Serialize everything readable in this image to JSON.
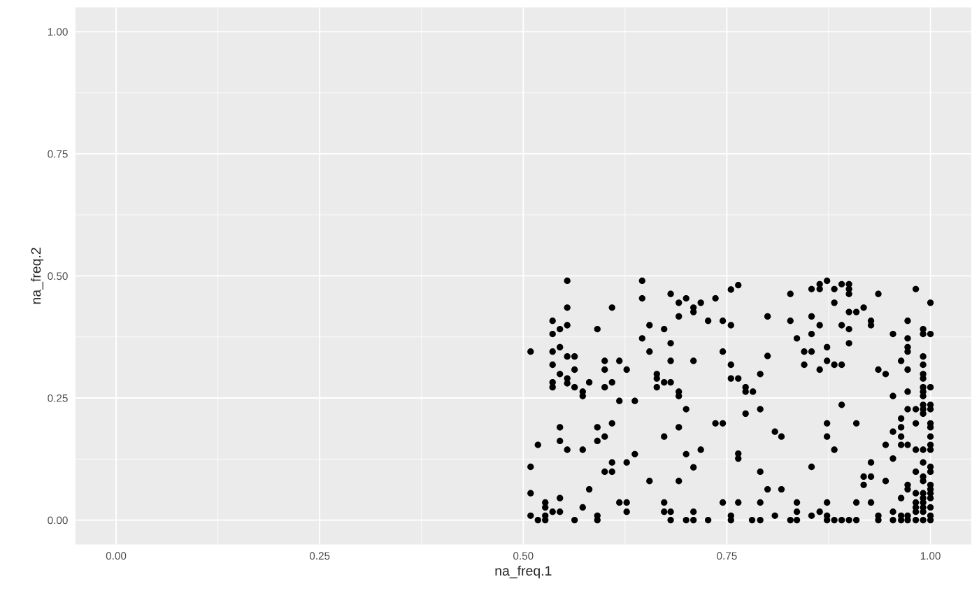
{
  "chart_data": {
    "type": "scatter",
    "xlabel": "na_freq.1",
    "ylabel": "na_freq.2",
    "xlim": [
      -0.05,
      1.05
    ],
    "ylim": [
      -0.05,
      1.05
    ],
    "xticks": [
      {
        "value": 0,
        "label": "0.00"
      },
      {
        "value": 0.25,
        "label": "0.25"
      },
      {
        "value": 0.5,
        "label": "0.50"
      },
      {
        "value": 0.75,
        "label": "0.75"
      },
      {
        "value": 1,
        "label": "1.00"
      }
    ],
    "yticks": [
      {
        "value": 0,
        "label": "0.00"
      },
      {
        "value": 0.25,
        "label": "0.25"
      },
      {
        "value": 0.5,
        "label": "0.50"
      },
      {
        "value": 0.75,
        "label": "0.75"
      },
      {
        "value": 1,
        "label": "1.00"
      }
    ],
    "grid": true,
    "marker": "circle",
    "series": [
      {
        "color": "#000000",
        "x": [
          0.554,
          0.646,
          0.646,
          0.554,
          0.609,
          0.536,
          0.554,
          0.545,
          0.536,
          0.591,
          0.655,
          0.673,
          0.646,
          0.509,
          0.536,
          0.545,
          0.554,
          0.563,
          0.655,
          0.536,
          0.563,
          0.545,
          0.6,
          0.618,
          0.6,
          0.627,
          0.554,
          0.554,
          0.536,
          0.536,
          0.563,
          0.573,
          0.573,
          0.581,
          0.6,
          0.609,
          0.664,
          0.664,
          0.664,
          0.673,
          0.618,
          0.637,
          0.609,
          0.545,
          0.591,
          0.6,
          0.545,
          0.591,
          0.518,
          0.554,
          0.573,
          0.673,
          0.637,
          0.609,
          0.627,
          0.6,
          0.609,
          0.509,
          0.655,
          0.581,
          0.509,
          0.545,
          0.527,
          0.527,
          0.536,
          0.545,
          0.573,
          0.618,
          0.627,
          0.627,
          0.673,
          0.673,
          0.509,
          0.518,
          0.527,
          0.527,
          0.563,
          0.591,
          0.591,
          0.764,
          0.755,
          0.681,
          0.828,
          0.7,
          0.736,
          0.691,
          0.709,
          0.718,
          0.709,
          0.691,
          0.8,
          0.727,
          0.745,
          0.828,
          0.755,
          0.836,
          0.681,
          0.745,
          0.845,
          0.8,
          0.681,
          0.709,
          0.755,
          0.845,
          0.791,
          0.755,
          0.764,
          0.681,
          0.691,
          0.691,
          0.773,
          0.773,
          0.782,
          0.7,
          0.791,
          0.773,
          0.736,
          0.745,
          0.691,
          0.809,
          0.817,
          0.718,
          0.7,
          0.764,
          0.764,
          0.709,
          0.791,
          0.691,
          0.8,
          0.817,
          0.745,
          0.764,
          0.791,
          0.836,
          0.681,
          0.709,
          0.836,
          0.809,
          0.755,
          0.681,
          0.7,
          0.709,
          0.727,
          0.755,
          0.781,
          0.791,
          0.828,
          0.836,
          0.873,
          0.864,
          0.854,
          0.864,
          0.882,
          0.891,
          0.9,
          0.9,
          0.9,
          0.936,
          0.982,
          0.882,
          1.0,
          0.9,
          0.909,
          0.918,
          0.854,
          0.927,
          0.927,
          0.972,
          0.864,
          0.891,
          0.9,
          0.854,
          0.954,
          0.991,
          0.991,
          1.0,
          0.972,
          0.9,
          0.873,
          0.972,
          0.972,
          0.854,
          0.991,
          0.964,
          0.873,
          0.882,
          0.891,
          0.991,
          0.864,
          0.936,
          0.972,
          0.945,
          0.991,
          0.991,
          0.991,
          1.0,
          0.972,
          0.991,
          0.991,
          0.954,
          0.891,
          0.972,
          0.982,
          0.991,
          1.0,
          0.991,
          1.0,
          0.991,
          0.964,
          0.873,
          0.909,
          0.982,
          1.0,
          0.964,
          1.0,
          0.954,
          0.873,
          0.964,
          1.0,
          0.945,
          0.964,
          0.972,
          1.0,
          0.882,
          0.982,
          0.991,
          1.0,
          0.954,
          0.927,
          0.991,
          0.854,
          1.0,
          1.0,
          0.982,
          0.918,
          0.927,
          0.991,
          0.945,
          0.991,
          0.918,
          0.972,
          1.0,
          0.972,
          1.0,
          0.982,
          0.991,
          1.0,
          0.964,
          0.991,
          1.0,
          0.873,
          0.909,
          0.927,
          0.982,
          0.991,
          0.982,
          0.991,
          1.0,
          0.864,
          0.954,
          0.982,
          0.991,
          0.854,
          0.873,
          0.936,
          0.964,
          0.972,
          1.0,
          0.873,
          0.882,
          0.891,
          0.9,
          0.909,
          0.936,
          0.954,
          0.964,
          0.972,
          0.982,
          0.991,
          1.0
        ],
        "values": [
          0.49,
          0.49,
          0.454,
          0.435,
          0.435,
          0.408,
          0.399,
          0.391,
          0.381,
          0.391,
          0.399,
          0.391,
          0.372,
          0.345,
          0.345,
          0.354,
          0.335,
          0.335,
          0.345,
          0.318,
          0.308,
          0.299,
          0.326,
          0.326,
          0.308,
          0.308,
          0.29,
          0.28,
          0.282,
          0.272,
          0.272,
          0.263,
          0.254,
          0.282,
          0.272,
          0.282,
          0.299,
          0.29,
          0.272,
          0.282,
          0.244,
          0.244,
          0.198,
          0.19,
          0.19,
          0.171,
          0.162,
          0.162,
          0.154,
          0.144,
          0.144,
          0.171,
          0.135,
          0.118,
          0.118,
          0.099,
          0.099,
          0.109,
          0.08,
          0.063,
          0.055,
          0.045,
          0.036,
          0.026,
          0.017,
          0.017,
          0.026,
          0.036,
          0.036,
          0.017,
          0.036,
          0.017,
          0.009,
          0,
          0.009,
          0,
          0,
          0.009,
          0,
          0.481,
          0.472,
          0.463,
          0.463,
          0.454,
          0.454,
          0.445,
          0.435,
          0.445,
          0.426,
          0.417,
          0.417,
          0.408,
          0.408,
          0.408,
          0.399,
          0.372,
          0.362,
          0.345,
          0.345,
          0.336,
          0.326,
          0.326,
          0.318,
          0.318,
          0.299,
          0.29,
          0.29,
          0.282,
          0.263,
          0.254,
          0.272,
          0.263,
          0.263,
          0.227,
          0.227,
          0.218,
          0.198,
          0.198,
          0.19,
          0.181,
          0.171,
          0.144,
          0.135,
          0.136,
          0.126,
          0.108,
          0.099,
          0.08,
          0.063,
          0.063,
          0.036,
          0.036,
          0.036,
          0.036,
          0.017,
          0.017,
          0.017,
          0.009,
          0.009,
          0,
          0,
          0,
          0,
          0,
          0,
          0,
          0,
          0,
          0.49,
          0.483,
          0.473,
          0.473,
          0.473,
          0.483,
          0.483,
          0.473,
          0.463,
          0.463,
          0.473,
          0.445,
          0.445,
          0.426,
          0.426,
          0.435,
          0.417,
          0.408,
          0.399,
          0.408,
          0.399,
          0.399,
          0.391,
          0.381,
          0.381,
          0.391,
          0.381,
          0.381,
          0.372,
          0.362,
          0.354,
          0.354,
          0.345,
          0.345,
          0.335,
          0.326,
          0.326,
          0.318,
          0.318,
          0.318,
          0.308,
          0.308,
          0.308,
          0.299,
          0.299,
          0.29,
          0.272,
          0.272,
          0.263,
          0.263,
          0.254,
          0.254,
          0.236,
          0.227,
          0.227,
          0.236,
          0.236,
          0.227,
          0.227,
          0.218,
          0.208,
          0.198,
          0.198,
          0.198,
          0.198,
          0.19,
          0.19,
          0.181,
          0.171,
          0.171,
          0.171,
          0.154,
          0.154,
          0.154,
          0.154,
          0.144,
          0.144,
          0.144,
          0.144,
          0.126,
          0.118,
          0.118,
          0.109,
          0.109,
          0.099,
          0.099,
          0.089,
          0.089,
          0.089,
          0.08,
          0.08,
          0.072,
          0.072,
          0.072,
          0.063,
          0.063,
          0.055,
          0.055,
          0.055,
          0.045,
          0.045,
          0.045,
          0.036,
          0.036,
          0.036,
          0.036,
          0.036,
          0.026,
          0.026,
          0.026,
          0.017,
          0.017,
          0.017,
          0.017,
          0.009,
          0.009,
          0.009,
          0.009,
          0.009,
          0.009,
          0,
          0,
          0,
          0,
          0,
          0,
          0,
          0,
          0,
          0,
          0,
          0
        ]
      }
    ]
  }
}
